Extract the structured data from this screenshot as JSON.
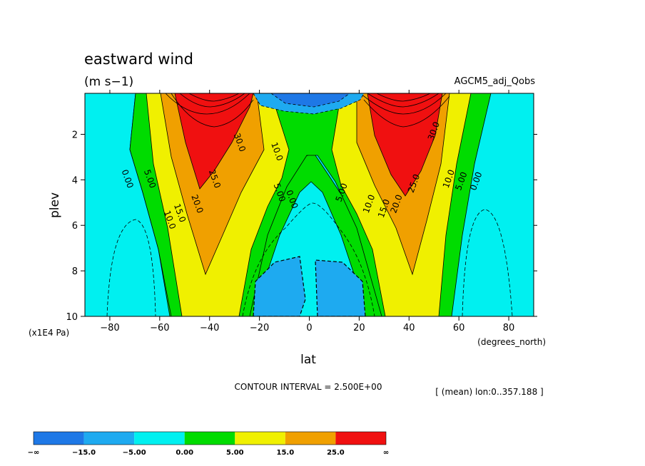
{
  "chart_data": {
    "type": "contour",
    "title": "eastward wind",
    "units": "(m s−1)",
    "model": "AGCM5_adj_Qobs",
    "xlabel": "lat",
    "x_units": "(degrees_north)",
    "ylabel": "plev",
    "y_units": "(x1E4 Pa)",
    "xlim": [
      -90,
      90
    ],
    "ylim": [
      10,
      0.2
    ],
    "x_ticks": [
      "−80",
      "−60",
      "−40",
      "−20",
      "0",
      "20",
      "40",
      "60",
      "80"
    ],
    "y_ticks": [
      "2",
      "4",
      "6",
      "8",
      "10"
    ],
    "contour_interval_text": "CONTOUR INTERVAL = 2.500E+00",
    "mean_text": "[ (mean) lon:0..357.188 ]",
    "contour_labels": [
      {
        "text": "0.00",
        "lat": -74,
        "plev": 4.0
      },
      {
        "text": "5.00",
        "lat": -65,
        "plev": 4.0
      },
      {
        "text": "10.0",
        "lat": -57,
        "plev": 5.8
      },
      {
        "text": "15.0",
        "lat": -53,
        "plev": 5.5
      },
      {
        "text": "20.0",
        "lat": -46,
        "plev": 5.1
      },
      {
        "text": "25.0",
        "lat": -39,
        "plev": 4.0
      },
      {
        "text": "30.0",
        "lat": -29,
        "plev": 2.4
      },
      {
        "text": "10.0",
        "lat": -14,
        "plev": 2.8
      },
      {
        "text": "5.00",
        "lat": -13,
        "plev": 4.6
      },
      {
        "text": "0.00",
        "lat": -8,
        "plev": 4.9
      },
      {
        "text": "5.00",
        "lat": 14,
        "plev": 4.6
      },
      {
        "text": "10.0",
        "lat": 25,
        "plev": 5.1
      },
      {
        "text": "15.0",
        "lat": 31,
        "plev": 5.3
      },
      {
        "text": "20.0",
        "lat": 36,
        "plev": 5.1
      },
      {
        "text": "25.0",
        "lat": 43,
        "plev": 4.2
      },
      {
        "text": "30.0",
        "lat": 51,
        "plev": 1.9
      },
      {
        "text": "10.0",
        "lat": 57,
        "plev": 4.0
      },
      {
        "text": "5.00",
        "lat": 62,
        "plev": 4.1
      },
      {
        "text": "0.00",
        "lat": 68,
        "plev": 4.1
      }
    ],
    "colorbar": {
      "colors": [
        "#1e78e6",
        "#1eaaf0",
        "#00f0f0",
        "#00dc00",
        "#f0f000",
        "#f0a000",
        "#f01010"
      ],
      "labels": [
        "−∞",
        "−15.0",
        "−5.00",
        "0.00",
        "5.00",
        "15.0",
        "25.0",
        "∞"
      ]
    },
    "fill_colors": {
      "deep_negative": "#1e78e6",
      "negative": "#1eaaf0",
      "near_zero": "#00f0f0",
      "low": "#00dc00",
      "mid": "#f0f000",
      "high": "#f0a000",
      "jet": "#f01010"
    }
  }
}
